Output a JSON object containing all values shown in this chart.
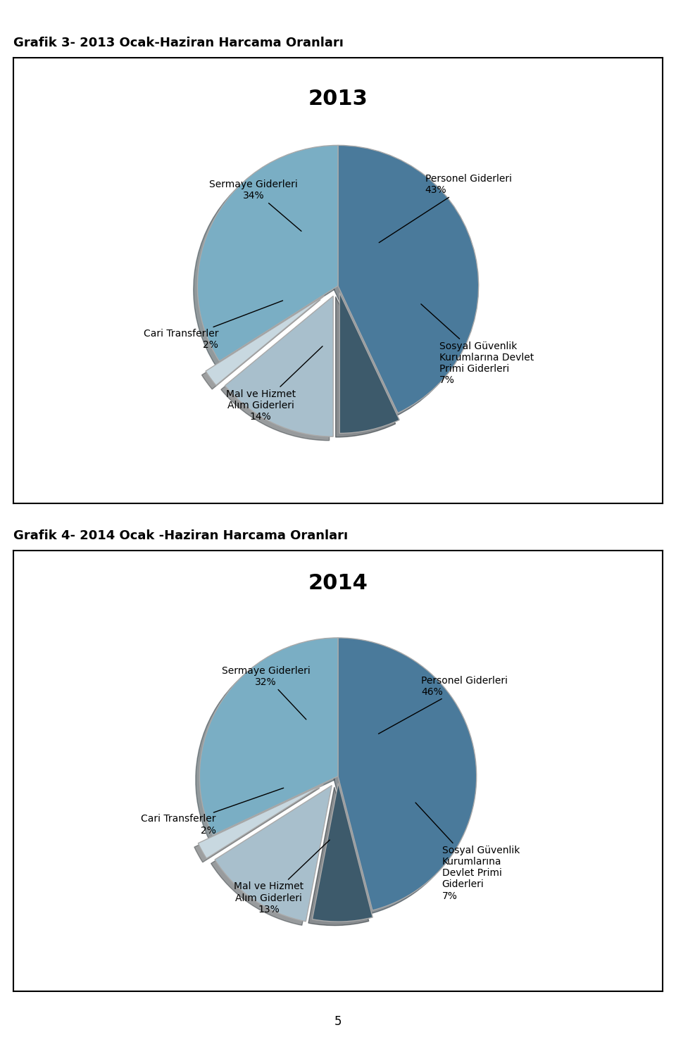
{
  "chart1_title": "2013",
  "chart1_header": "Grafik 3- 2013 Ocak-Haziran Harcama Oranları",
  "chart1_slices": [
    43,
    7,
    14,
    2,
    34
  ],
  "chart1_labels": [
    "Personel Giderleri\n43%",
    "Sosyal Güvenlik\nKurumlarına Devlet\nPrimi Giderleri\n7%",
    "Mal ve Hizmet\nAlım Giderleri\n14%",
    "Cari Transferler\n2%",
    "Sermaye Giderleri\n34%"
  ],
  "chart1_colors": [
    "#4a7a9b",
    "#3d5a6b",
    "#a8bfcc",
    "#c8d8e0",
    "#7aaec4"
  ],
  "chart1_explode": [
    0,
    0.05,
    0.08,
    0.12,
    0
  ],
  "chart2_title": "2014",
  "chart2_header": "Grafik 4- 2014 Ocak -Haziran Harcama Oranları",
  "chart2_slices": [
    46,
    7,
    13,
    2,
    32
  ],
  "chart2_labels": [
    "Personel Giderleri\n46%",
    "Sosyal Güvenlik\nKurumlarına\nDevlet Primi\nGiderleri\n7%",
    "Mal ve Hizmet\nAlım Giderleri\n13%",
    "Cari Transferler\n2%",
    "Sermaye Giderleri\n32%"
  ],
  "chart2_colors": [
    "#4a7a9b",
    "#3d5a6b",
    "#a8bfcc",
    "#c8d8e0",
    "#7aaec4"
  ],
  "chart2_explode": [
    0,
    0.05,
    0.08,
    0.12,
    0
  ],
  "page_number": "5",
  "bg_color": "#ffffff",
  "border_color": "#000000",
  "header_fontsize": 13,
  "title_fontsize": 22,
  "label_fontsize": 10
}
